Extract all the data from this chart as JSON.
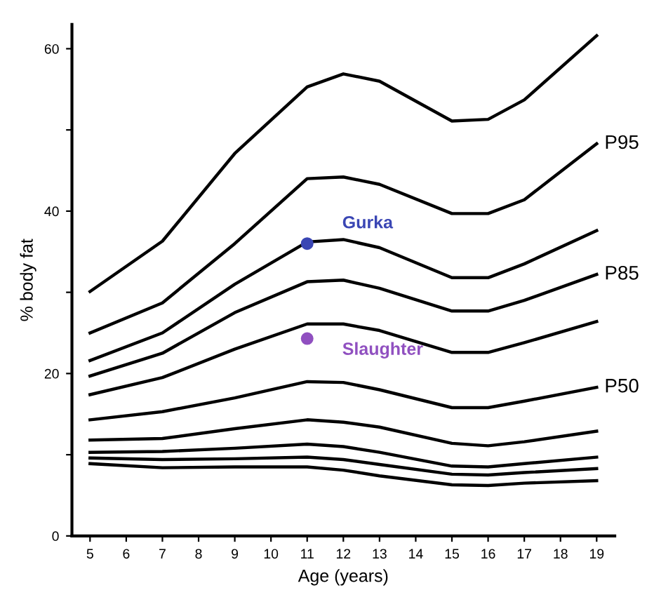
{
  "chart_data": {
    "type": "line",
    "xlabel": "Age (years)",
    "ylabel": "% body fat",
    "x": [
      5,
      7,
      9,
      11,
      12,
      13,
      15,
      16,
      17,
      19
    ],
    "series": [
      {
        "color": "#000000",
        "values": [
          30.1,
          36.3,
          47.1,
          55.3,
          56.9,
          56.0,
          51.1,
          51.3,
          53.7,
          61.6
        ]
      },
      {
        "name": "P95",
        "color": "#000000",
        "values": [
          25.0,
          28.7,
          36.0,
          44.0,
          44.2,
          43.3,
          39.7,
          39.7,
          41.4,
          48.3
        ]
      },
      {
        "color": "#000000",
        "values": [
          21.6,
          25.0,
          31.0,
          36.2,
          36.5,
          35.5,
          31.8,
          31.8,
          33.5,
          37.6
        ]
      },
      {
        "name": "P85",
        "color": "#000000",
        "values": [
          19.7,
          22.5,
          27.5,
          31.3,
          31.5,
          30.5,
          27.7,
          27.7,
          29.0,
          32.2
        ]
      },
      {
        "color": "#000000",
        "values": [
          17.4,
          19.5,
          23.0,
          26.1,
          26.1,
          25.3,
          22.6,
          22.6,
          23.8,
          26.4
        ]
      },
      {
        "name": "P50",
        "color": "#000000",
        "values": [
          14.3,
          15.3,
          17.0,
          19.0,
          18.9,
          18.0,
          15.8,
          15.8,
          16.6,
          18.3
        ]
      },
      {
        "color": "#000000",
        "values": [
          11.8,
          12.0,
          13.2,
          14.3,
          14.0,
          13.4,
          11.4,
          11.1,
          11.6,
          12.9
        ]
      },
      {
        "color": "#000000",
        "values": [
          10.3,
          10.4,
          10.8,
          11.3,
          11.0,
          10.3,
          8.6,
          8.5,
          8.9,
          9.7
        ]
      },
      {
        "color": "#000000",
        "values": [
          9.6,
          9.4,
          9.5,
          9.7,
          9.4,
          8.8,
          7.6,
          7.5,
          7.8,
          8.3
        ]
      },
      {
        "color": "#000000",
        "values": [
          8.9,
          8.4,
          8.5,
          8.5,
          8.1,
          7.4,
          6.3,
          6.2,
          6.5,
          6.8
        ]
      },
      {
        "type": "scatter",
        "name": "Gurka",
        "color": "#3a46b4",
        "marker": "circle",
        "x": [
          11
        ],
        "values": [
          36
        ]
      },
      {
        "type": "scatter",
        "name": "Slaughter",
        "color": "#9050c0",
        "marker": "circle",
        "x": [
          11
        ],
        "values": [
          24.3
        ]
      }
    ],
    "xlim": [
      4.5,
      19.5
    ],
    "xticks": [
      5,
      6,
      7,
      8,
      9,
      10,
      11,
      12,
      13,
      14,
      15,
      16,
      17,
      18,
      19
    ],
    "ylim": [
      0,
      63
    ],
    "yticks": [
      0,
      {
        "value": 10,
        "label": null
      },
      20,
      {
        "value": 30,
        "label": null
      },
      40,
      {
        "value": 50,
        "label": null
      },
      60
    ],
    "grid": false,
    "legend": false,
    "line_style": "solid",
    "marker": "none"
  }
}
